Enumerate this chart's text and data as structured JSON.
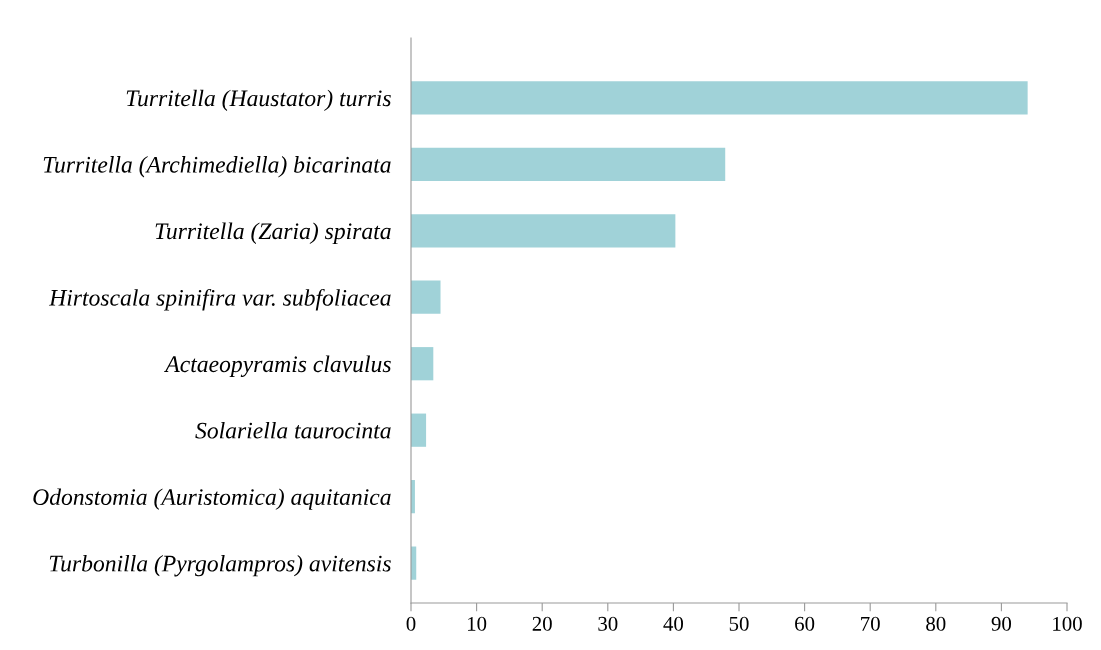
{
  "chart_data": {
    "type": "bar",
    "orientation": "horizontal",
    "categories": [
      "Turritella (Haustator) turris",
      "Turritella (Archimediella) bicarinata",
      "Turritella (Zaria) spirata",
      "Hirtoscala spinifira var. subfoliacea",
      "Actaeopyramis clavulus",
      "Solariella taurocinta",
      "Odonstomia (Auristomica) aquitanica",
      "Turbonilla (Pyrgolampros) avitensis"
    ],
    "values": [
      94.0,
      47.9,
      40.3,
      4.5,
      3.4,
      2.3,
      0.6,
      0.8
    ],
    "color": "#a0d2d8",
    "xlim": [
      0,
      100
    ],
    "xticks": [
      0,
      10,
      20,
      30,
      40,
      50,
      60,
      70,
      80,
      90,
      100
    ],
    "grid": false,
    "legend": false
  }
}
